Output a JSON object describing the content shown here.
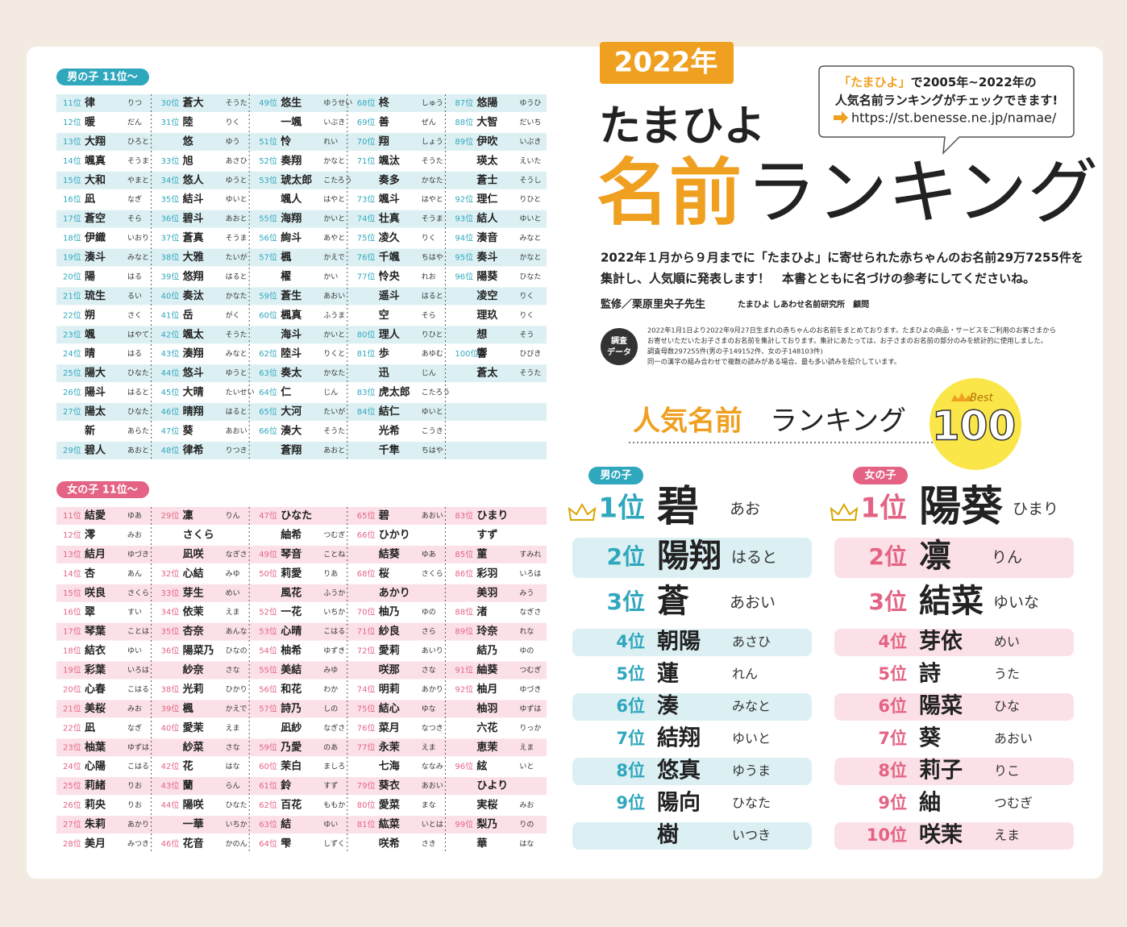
{
  "badge": "2022年",
  "brand": "たまひよ",
  "title_accent": "名前",
  "title_rest": "ランキング",
  "bubble": {
    "accent": "「たまひよ」",
    "line1": "で2005年~2022年の",
    "line2": "人気名前ランキングがチェックできます!",
    "url": "https://st.benesse.ne.jp/namae/"
  },
  "intro": [
    "2022年１月から９月までに「たまひよ」に寄せられた赤ちゃんのお名前29万7255件を",
    "集計し、人気順に発表します！　本書とともに名づけの参考にしてくださいね。"
  ],
  "supervisor": "監修／栗原里央子先生",
  "supervisor_org": "たまひよ しあわせ名前研究所　顧問",
  "survey": {
    "label": [
      "調査",
      "データ"
    ],
    "notes": [
      "2022年1月1日より2022年9月27日生まれの赤ちゃんのお名前をまとめております。たまひよの商品・サービスをご利用のお客さまから",
      "お寄せいただいたお子さまのお名前を集計しております。集計にあたっては、お子さまのお名前の部分のみを統計的に使用しました。",
      "調査母数297255件(男の子149152件、女の子148103件)",
      "同一の漢字の組み合わせで複数の読みがある場合、最も多い読みを紹介しています。"
    ]
  },
  "ranking_accent": "人気名前",
  "ranking_rest": "ランキング",
  "best": "Best",
  "best_num": "100",
  "boys_top": {
    "label": "男の子",
    "rows": [
      {
        "rank": "1位",
        "name": "碧",
        "reading": "あお"
      },
      {
        "rank": "2位",
        "name": "陽翔",
        "reading": "はると"
      },
      {
        "rank": "3位",
        "name": "蒼",
        "reading": "あおい"
      },
      {
        "rank": "4位",
        "name": "朝陽",
        "reading": "あさひ"
      },
      {
        "rank": "5位",
        "name": "蓮",
        "reading": "れん"
      },
      {
        "rank": "6位",
        "name": "湊",
        "reading": "みなと"
      },
      {
        "rank": "7位",
        "name": "結翔",
        "reading": "ゆいと"
      },
      {
        "rank": "8位",
        "name": "悠真",
        "reading": "ゆうま"
      },
      {
        "rank": "9位",
        "name": "陽向",
        "reading": "ひなた"
      },
      {
        "name": "樹",
        "reading": "いつき"
      }
    ]
  },
  "girls_top": {
    "label": "女の子",
    "rows": [
      {
        "rank": "1位",
        "name": "陽葵",
        "reading": "ひまり"
      },
      {
        "rank": "2位",
        "name": "凛",
        "reading": "りん"
      },
      {
        "rank": "3位",
        "name": "結菜",
        "reading": "ゆいな"
      },
      {
        "rank": "4位",
        "name": "芽依",
        "reading": "めい"
      },
      {
        "rank": "5位",
        "name": "詩",
        "reading": "うた"
      },
      {
        "rank": "6位",
        "name": "陽菜",
        "reading": "ひな"
      },
      {
        "rank": "7位",
        "name": "葵",
        "reading": "あおい"
      },
      {
        "rank": "8位",
        "name": "莉子",
        "reading": "りこ"
      },
      {
        "rank": "9位",
        "name": "紬",
        "reading": "つむぎ"
      },
      {
        "rank": "10位",
        "name": "咲茉",
        "reading": "えま"
      }
    ]
  },
  "boys_list": {
    "label": "男の子 11位～",
    "columns": [
      [
        {
          "rank": "11位",
          "name": "律",
          "reading": "りつ"
        },
        {
          "rank": "12位",
          "name": "暖",
          "reading": "だん"
        },
        {
          "rank": "13位",
          "name": "大翔",
          "reading": "ひろと"
        },
        {
          "rank": "14位",
          "name": "颯真",
          "reading": "そうま"
        },
        {
          "rank": "15位",
          "name": "大和",
          "reading": "やまと"
        },
        {
          "rank": "16位",
          "name": "凪",
          "reading": "なぎ"
        },
        {
          "rank": "17位",
          "name": "蒼空",
          "reading": "そら"
        },
        {
          "rank": "18位",
          "name": "伊織",
          "reading": "いおり"
        },
        {
          "rank": "19位",
          "name": "湊斗",
          "reading": "みなと"
        },
        {
          "rank": "20位",
          "name": "陽",
          "reading": "はる"
        },
        {
          "rank": "21位",
          "name": "琉生",
          "reading": "るい"
        },
        {
          "rank": "22位",
          "name": "朔",
          "reading": "さく"
        },
        {
          "rank": "23位",
          "name": "颯",
          "reading": "はやて"
        },
        {
          "rank": "24位",
          "name": "晴",
          "reading": "はる"
        },
        {
          "rank": "25位",
          "name": "陽大",
          "reading": "ひなた"
        },
        {
          "rank": "26位",
          "name": "陽斗",
          "reading": "はると"
        },
        {
          "rank": "27位",
          "name": "陽太",
          "reading": "ひなた"
        },
        {
          "name": "新",
          "reading": "あらた"
        },
        {
          "rank": "29位",
          "name": "碧人",
          "reading": "あおと"
        }
      ],
      [
        {
          "rank": "30位",
          "name": "蒼大",
          "reading": "そうた"
        },
        {
          "rank": "31位",
          "name": "陸",
          "reading": "りく"
        },
        {
          "name": "悠",
          "reading": "ゆう"
        },
        {
          "rank": "33位",
          "name": "旭",
          "reading": "あさひ"
        },
        {
          "rank": "34位",
          "name": "悠人",
          "reading": "ゆうと"
        },
        {
          "rank": "35位",
          "name": "結斗",
          "reading": "ゆいと"
        },
        {
          "rank": "36位",
          "name": "碧斗",
          "reading": "あおと"
        },
        {
          "rank": "37位",
          "name": "蒼真",
          "reading": "そうま"
        },
        {
          "rank": "38位",
          "name": "大雅",
          "reading": "たいが"
        },
        {
          "rank": "39位",
          "name": "悠翔",
          "reading": "はると"
        },
        {
          "rank": "40位",
          "name": "奏汰",
          "reading": "かなた"
        },
        {
          "rank": "41位",
          "name": "岳",
          "reading": "がく"
        },
        {
          "rank": "42位",
          "name": "颯太",
          "reading": "そうた"
        },
        {
          "rank": "43位",
          "name": "湊翔",
          "reading": "みなと"
        },
        {
          "rank": "44位",
          "name": "悠斗",
          "reading": "ゆうと"
        },
        {
          "rank": "45位",
          "name": "大晴",
          "reading": "たいせい"
        },
        {
          "rank": "46位",
          "name": "晴翔",
          "reading": "はると"
        },
        {
          "rank": "47位",
          "name": "葵",
          "reading": "あおい"
        },
        {
          "rank": "48位",
          "name": "律希",
          "reading": "りつき"
        }
      ],
      [
        {
          "rank": "49位",
          "name": "悠生",
          "reading": "ゆうせい"
        },
        {
          "name": "一颯",
          "reading": "いぶき"
        },
        {
          "rank": "51位",
          "name": "怜",
          "reading": "れい"
        },
        {
          "rank": "52位",
          "name": "奏翔",
          "reading": "かなと"
        },
        {
          "rank": "53位",
          "name": "琥太郎",
          "reading": "こたろう"
        },
        {
          "name": "颯人",
          "reading": "はやと"
        },
        {
          "rank": "55位",
          "name": "海翔",
          "reading": "かいと"
        },
        {
          "rank": "56位",
          "name": "絢斗",
          "reading": "あやと"
        },
        {
          "rank": "57位",
          "name": "楓",
          "reading": "かえで"
        },
        {
          "name": "櫂",
          "reading": "かい"
        },
        {
          "rank": "59位",
          "name": "蒼生",
          "reading": "あおい"
        },
        {
          "rank": "60位",
          "name": "楓真",
          "reading": "ふうま"
        },
        {
          "name": "海斗",
          "reading": "かいと"
        },
        {
          "rank": "62位",
          "name": "陸斗",
          "reading": "りくと"
        },
        {
          "rank": "63位",
          "name": "奏太",
          "reading": "かなた"
        },
        {
          "rank": "64位",
          "name": "仁",
          "reading": "じん"
        },
        {
          "rank": "65位",
          "name": "大河",
          "reading": "たいが"
        },
        {
          "rank": "66位",
          "name": "湊大",
          "reading": "そうた"
        },
        {
          "name": "蒼翔",
          "reading": "あおと"
        }
      ],
      [
        {
          "rank": "68位",
          "name": "柊",
          "reading": "しゅう"
        },
        {
          "rank": "69位",
          "name": "善",
          "reading": "ぜん"
        },
        {
          "rank": "70位",
          "name": "翔",
          "reading": "しょう"
        },
        {
          "rank": "71位",
          "name": "颯汰",
          "reading": "そうた"
        },
        {
          "name": "奏多",
          "reading": "かなた"
        },
        {
          "rank": "73位",
          "name": "颯斗",
          "reading": "はやと"
        },
        {
          "rank": "74位",
          "name": "壮真",
          "reading": "そうま"
        },
        {
          "rank": "75位",
          "name": "凌久",
          "reading": "りく"
        },
        {
          "rank": "76位",
          "name": "千颯",
          "reading": "ちはや"
        },
        {
          "rank": "77位",
          "name": "怜央",
          "reading": "れお"
        },
        {
          "name": "遥斗",
          "reading": "はると"
        },
        {
          "name": "空",
          "reading": "そら"
        },
        {
          "rank": "80位",
          "name": "理人",
          "reading": "りひと"
        },
        {
          "rank": "81位",
          "name": "歩",
          "reading": "あゆむ"
        },
        {
          "name": "迅",
          "reading": "じん"
        },
        {
          "rank": "83位",
          "name": "虎太郎",
          "reading": "こたろう"
        },
        {
          "rank": "84位",
          "name": "結仁",
          "reading": "ゆいと"
        },
        {
          "name": "光希",
          "reading": "こうき"
        },
        {
          "name": "千隼",
          "reading": "ちはや"
        }
      ],
      [
        {
          "rank": "87位",
          "name": "悠陽",
          "reading": "ゆうひ"
        },
        {
          "rank": "88位",
          "name": "大智",
          "reading": "だいち"
        },
        {
          "rank": "89位",
          "name": "伊吹",
          "reading": "いぶき"
        },
        {
          "name": "瑛太",
          "reading": "えいた"
        },
        {
          "name": "蒼士",
          "reading": "そうし"
        },
        {
          "rank": "92位",
          "name": "理仁",
          "reading": "りひと"
        },
        {
          "rank": "93位",
          "name": "結人",
          "reading": "ゆいと"
        },
        {
          "rank": "94位",
          "name": "湊音",
          "reading": "みなと"
        },
        {
          "rank": "95位",
          "name": "奏斗",
          "reading": "かなと"
        },
        {
          "rank": "96位",
          "name": "陽葵",
          "reading": "ひなた"
        },
        {
          "name": "凌空",
          "reading": "りく"
        },
        {
          "name": "理玖",
          "reading": "りく"
        },
        {
          "name": "想",
          "reading": "そう"
        },
        {
          "rank": "100位",
          "name": "響",
          "reading": "ひびき"
        },
        {
          "name": "蒼太",
          "reading": "そうた"
        }
      ]
    ]
  },
  "girls_list": {
    "label": "女の子 11位～",
    "columns": [
      [
        {
          "rank": "11位",
          "name": "結愛",
          "reading": "ゆあ"
        },
        {
          "rank": "12位",
          "name": "澪",
          "reading": "みお"
        },
        {
          "rank": "13位",
          "name": "結月",
          "reading": "ゆづき"
        },
        {
          "rank": "14位",
          "name": "杏",
          "reading": "あん"
        },
        {
          "rank": "15位",
          "name": "咲良",
          "reading": "さくら"
        },
        {
          "rank": "16位",
          "name": "翠",
          "reading": "すい"
        },
        {
          "rank": "17位",
          "name": "琴葉",
          "reading": "ことは"
        },
        {
          "rank": "18位",
          "name": "結衣",
          "reading": "ゆい"
        },
        {
          "rank": "19位",
          "name": "彩葉",
          "reading": "いろは"
        },
        {
          "rank": "20位",
          "name": "心春",
          "reading": "こはる"
        },
        {
          "rank": "21位",
          "name": "美桜",
          "reading": "みお"
        },
        {
          "rank": "22位",
          "name": "凪",
          "reading": "なぎ"
        },
        {
          "rank": "23位",
          "name": "柚葉",
          "reading": "ゆずは"
        },
        {
          "rank": "24位",
          "name": "心陽",
          "reading": "こはる"
        },
        {
          "rank": "25位",
          "name": "莉緒",
          "reading": "りお"
        },
        {
          "rank": "26位",
          "name": "莉央",
          "reading": "りお"
        },
        {
          "rank": "27位",
          "name": "朱莉",
          "reading": "あかり"
        },
        {
          "rank": "28位",
          "name": "美月",
          "reading": "みつき"
        }
      ],
      [
        {
          "rank": "29位",
          "name": "凜",
          "reading": "りん"
        },
        {
          "name": "さくら"
        },
        {
          "name": "凪咲",
          "reading": "なぎさ"
        },
        {
          "rank": "32位",
          "name": "心結",
          "reading": "みゆ"
        },
        {
          "rank": "33位",
          "name": "芽生",
          "reading": "めい"
        },
        {
          "rank": "34位",
          "name": "依茉",
          "reading": "えま"
        },
        {
          "rank": "35位",
          "name": "杏奈",
          "reading": "あんな"
        },
        {
          "rank": "36位",
          "name": "陽菜乃",
          "reading": "ひなの"
        },
        {
          "name": "紗奈",
          "reading": "さな"
        },
        {
          "rank": "38位",
          "name": "光莉",
          "reading": "ひかり"
        },
        {
          "rank": "39位",
          "name": "楓",
          "reading": "かえで"
        },
        {
          "rank": "40位",
          "name": "愛茉",
          "reading": "えま"
        },
        {
          "name": "紗菜",
          "reading": "さな"
        },
        {
          "rank": "42位",
          "name": "花",
          "reading": "はな"
        },
        {
          "rank": "43位",
          "name": "蘭",
          "reading": "らん"
        },
        {
          "rank": "44位",
          "name": "陽咲",
          "reading": "ひなた"
        },
        {
          "name": "一華",
          "reading": "いちか"
        },
        {
          "rank": "46位",
          "name": "花音",
          "reading": "かのん"
        }
      ],
      [
        {
          "rank": "47位",
          "name": "ひなた"
        },
        {
          "name": "紬希",
          "reading": "つむぎ"
        },
        {
          "rank": "49位",
          "name": "琴音",
          "reading": "ことね"
        },
        {
          "rank": "50位",
          "name": "莉愛",
          "reading": "りあ"
        },
        {
          "name": "風花",
          "reading": "ふうか"
        },
        {
          "rank": "52位",
          "name": "一花",
          "reading": "いちか"
        },
        {
          "rank": "53位",
          "name": "心晴",
          "reading": "こはる"
        },
        {
          "rank": "54位",
          "name": "柚希",
          "reading": "ゆずき"
        },
        {
          "rank": "55位",
          "name": "美結",
          "reading": "みゆ"
        },
        {
          "rank": "56位",
          "name": "和花",
          "reading": "わか"
        },
        {
          "rank": "57位",
          "name": "詩乃",
          "reading": "しの"
        },
        {
          "name": "凪紗",
          "reading": "なぎさ"
        },
        {
          "rank": "59位",
          "name": "乃愛",
          "reading": "のあ"
        },
        {
          "rank": "60位",
          "name": "茉白",
          "reading": "ましろ"
        },
        {
          "rank": "61位",
          "name": "鈴",
          "reading": "すず"
        },
        {
          "rank": "62位",
          "name": "百花",
          "reading": "ももか"
        },
        {
          "rank": "63位",
          "name": "結",
          "reading": "ゆい"
        },
        {
          "rank": "64位",
          "name": "雫",
          "reading": "しずく"
        }
      ],
      [
        {
          "rank": "65位",
          "name": "碧",
          "reading": "あおい"
        },
        {
          "rank": "66位",
          "name": "ひかり"
        },
        {
          "name": "結葵",
          "reading": "ゆあ"
        },
        {
          "rank": "68位",
          "name": "桜",
          "reading": "さくら"
        },
        {
          "name": "あかり"
        },
        {
          "rank": "70位",
          "name": "柚乃",
          "reading": "ゆの"
        },
        {
          "rank": "71位",
          "name": "紗良",
          "reading": "さら"
        },
        {
          "rank": "72位",
          "name": "愛莉",
          "reading": "あいり"
        },
        {
          "name": "咲那",
          "reading": "さな"
        },
        {
          "rank": "74位",
          "name": "明莉",
          "reading": "あかり"
        },
        {
          "rank": "75位",
          "name": "結心",
          "reading": "ゆな"
        },
        {
          "rank": "76位",
          "name": "菜月",
          "reading": "なつき"
        },
        {
          "rank": "77位",
          "name": "永茉",
          "reading": "えま"
        },
        {
          "name": "七海",
          "reading": "ななみ"
        },
        {
          "rank": "79位",
          "name": "葵衣",
          "reading": "あおい"
        },
        {
          "rank": "80位",
          "name": "愛菜",
          "reading": "まな"
        },
        {
          "rank": "81位",
          "name": "紘菜",
          "reading": "いとは"
        },
        {
          "name": "咲希",
          "reading": "さき"
        }
      ],
      [
        {
          "rank": "83位",
          "name": "ひまり"
        },
        {
          "name": "すず"
        },
        {
          "rank": "85位",
          "name": "菫",
          "reading": "すみれ"
        },
        {
          "rank": "86位",
          "name": "彩羽",
          "reading": "いろは"
        },
        {
          "name": "美羽",
          "reading": "みう"
        },
        {
          "rank": "88位",
          "name": "渚",
          "reading": "なぎさ"
        },
        {
          "rank": "89位",
          "name": "玲奈",
          "reading": "れな"
        },
        {
          "name": "結乃",
          "reading": "ゆの"
        },
        {
          "rank": "91位",
          "name": "紬葵",
          "reading": "つむぎ"
        },
        {
          "rank": "92位",
          "name": "柚月",
          "reading": "ゆづき"
        },
        {
          "name": "柚羽",
          "reading": "ゆずは"
        },
        {
          "name": "六花",
          "reading": "りっか"
        },
        {
          "name": "恵茉",
          "reading": "えま"
        },
        {
          "rank": "96位",
          "name": "絃",
          "reading": "いと"
        },
        {
          "name": "ひより"
        },
        {
          "name": "実桜",
          "reading": "みお"
        },
        {
          "rank": "99位",
          "name": "梨乃",
          "reading": "りの"
        },
        {
          "name": "華",
          "reading": "はな"
        }
      ]
    ]
  }
}
